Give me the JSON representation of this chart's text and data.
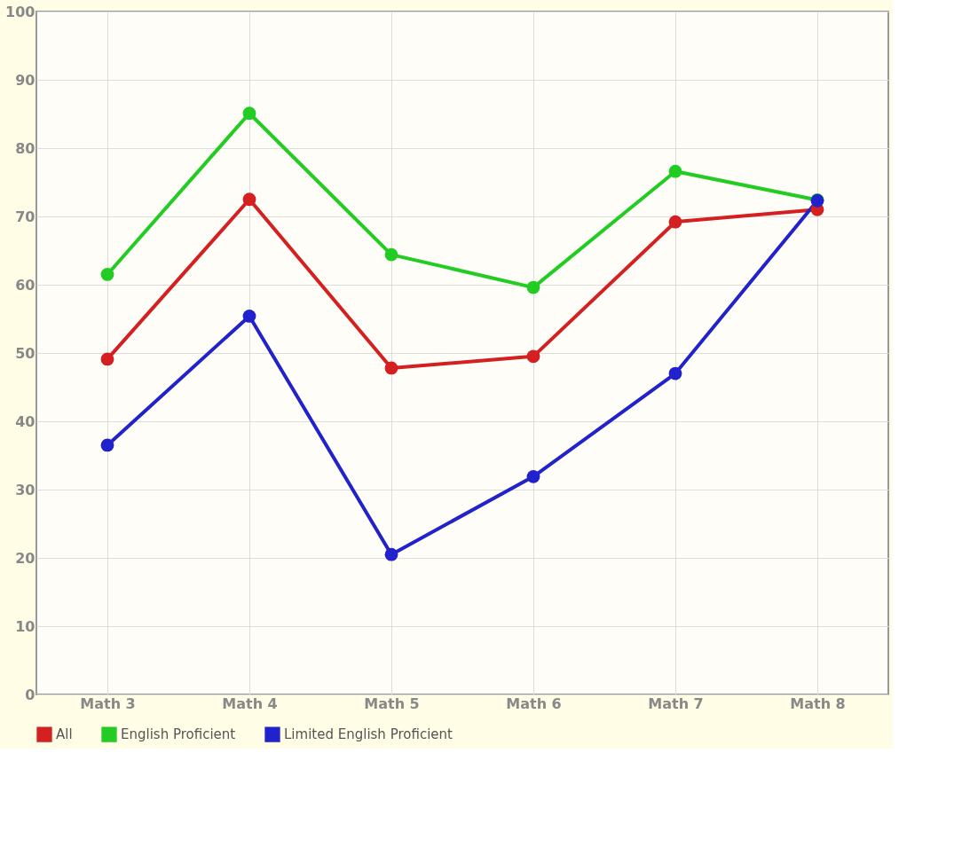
{
  "chart_data": {
    "type": "line",
    "categories": [
      "Math 3",
      "Math 4",
      "Math 5",
      "Math 6",
      "Math 7",
      "Math 8"
    ],
    "series": [
      {
        "name": "All",
        "color": "#d42020",
        "values": [
          49.1,
          72.5,
          47.8,
          49.5,
          69.2,
          71.0
        ]
      },
      {
        "name": "English Proficient",
        "color": "#22cc22",
        "values": [
          61.5,
          85.1,
          64.4,
          59.6,
          76.6,
          72.4
        ]
      },
      {
        "name": "Limited English Proficient",
        "color": "#2222cc",
        "values": [
          36.5,
          55.4,
          20.5,
          31.9,
          47.0,
          72.3
        ]
      }
    ],
    "ylim": [
      0,
      100
    ],
    "yticks": [
      0,
      10,
      20,
      30,
      40,
      50,
      60,
      70,
      80,
      90,
      100
    ],
    "grid": true,
    "legend": "bottom",
    "marker": "circle",
    "line_style": "solid"
  }
}
